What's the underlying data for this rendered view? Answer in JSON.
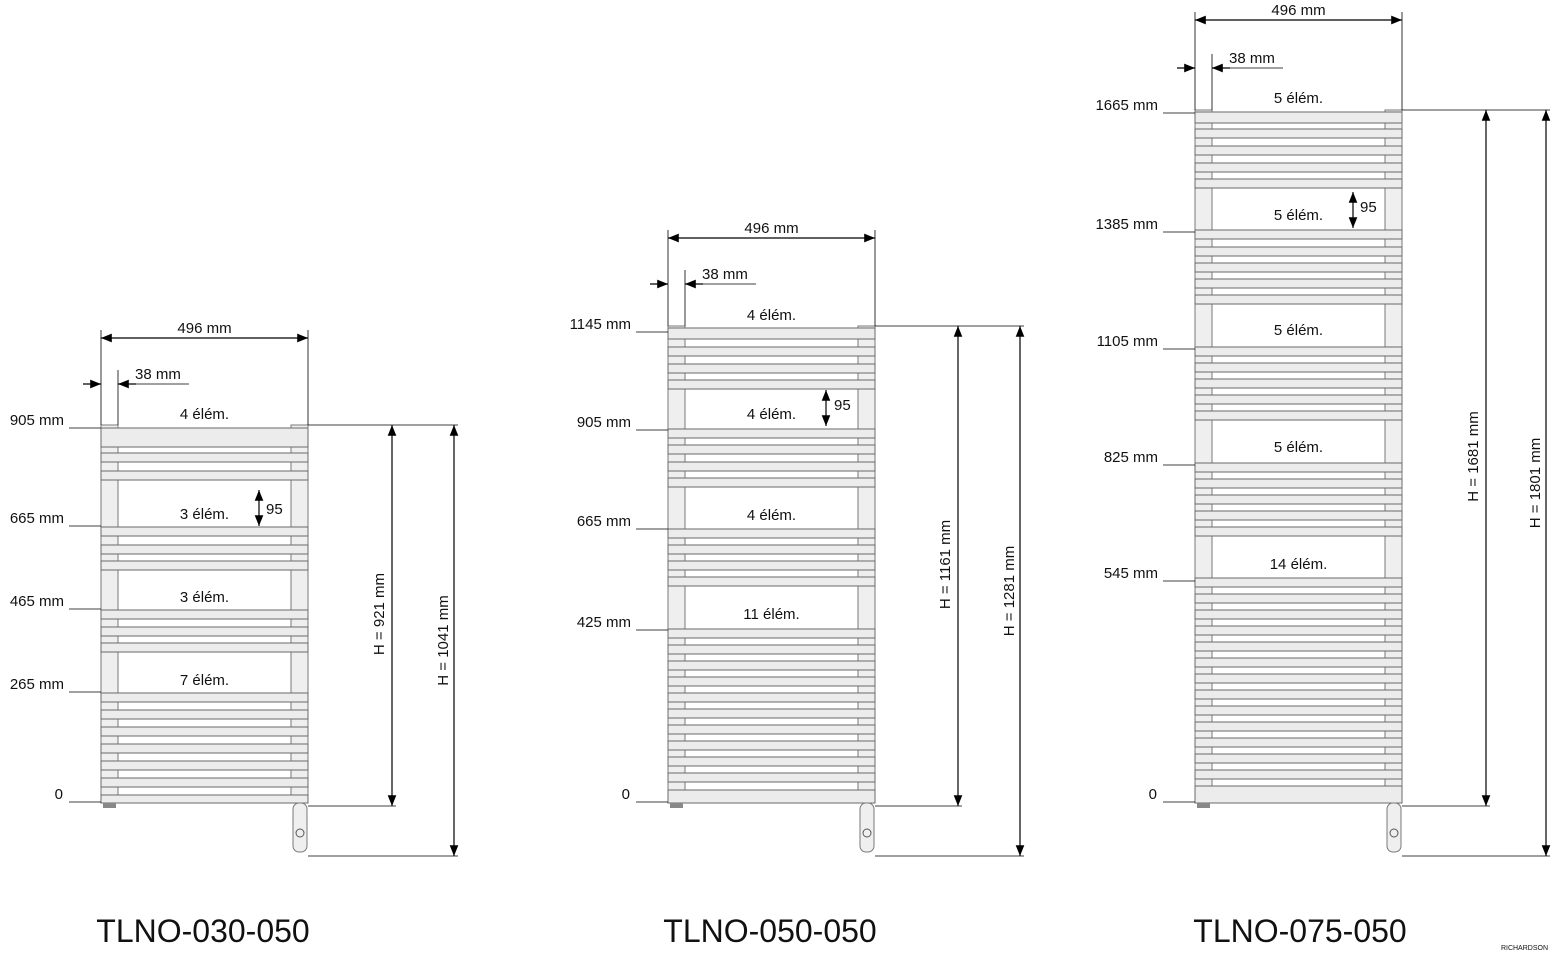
{
  "units": {
    "width_label": "496 mm",
    "tube_label": "38 mm",
    "spacing_label": "95"
  },
  "models": [
    {
      "name": "TLNO-030-050",
      "height_label": "H = 921 mm",
      "total_label": "H = 1041 mm",
      "levels": [
        "905 mm",
        "665 mm",
        "465 mm",
        "265 mm",
        "0"
      ],
      "sections": [
        "4 élém.",
        "3 élém.",
        "3 élém.",
        "7 élém."
      ]
    },
    {
      "name": "TLNO-050-050",
      "height_label": "H = 1161 mm",
      "total_label": "H = 1281 mm",
      "levels": [
        "1145 mm",
        "905 mm",
        "665 mm",
        "425 mm",
        "0"
      ],
      "sections": [
        "4 élém.",
        "4 élém.",
        "4 élém.",
        "11 élém."
      ]
    },
    {
      "name": "TLNO-075-050",
      "height_label": "H = 1681 mm",
      "total_label": "H = 1801 mm",
      "levels": [
        "1665 mm",
        "1385 mm",
        "1105 mm",
        "825 mm",
        "545 mm",
        "0"
      ],
      "sections": [
        "5 élém.",
        "5 élém.",
        "5 élém.",
        "5 élém.",
        "14 élém."
      ]
    }
  ],
  "watermark": "RICHARDSON"
}
